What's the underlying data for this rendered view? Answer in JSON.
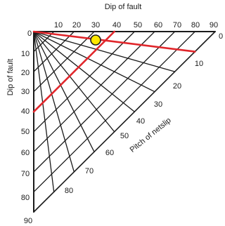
{
  "top_axis": {
    "title": "Dip of fault",
    "ticks": [
      "0",
      "10",
      "20",
      "30",
      "40",
      "50",
      "60",
      "70",
      "80",
      "90"
    ]
  },
  "left_axis": {
    "title": "Dip of fault",
    "ticks": [
      "0",
      "10",
      "20",
      "30",
      "40",
      "50",
      "60",
      "70",
      "80",
      "90"
    ]
  },
  "pitch_axis": {
    "title": "Pitch of netslip",
    "ticks": [
      "0",
      "10",
      "20",
      "30",
      "40",
      "50",
      "60",
      "70",
      "80"
    ]
  },
  "colors": {
    "grid": "#1a1a1a",
    "highlight": "#e0262b",
    "marker_fill": "#ffe800",
    "marker_stroke": "#1a1a1a"
  },
  "highlight_lines": [
    {
      "family": "pitch",
      "value": 10
    },
    {
      "family": "dip",
      "value": 40
    }
  ],
  "marker": {
    "dip": 30,
    "pitch": 10,
    "symbol": "circle"
  }
}
